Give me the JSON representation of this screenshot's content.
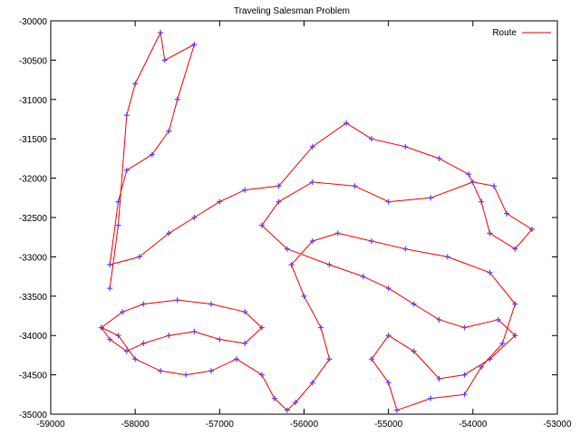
{
  "chart_data": {
    "type": "line",
    "title": "Traveling Salesman Problem",
    "xlabel": "",
    "ylabel": "",
    "xlim": [
      -59000,
      -53000
    ],
    "ylim": [
      -35000,
      -30000
    ],
    "x_ticks": [
      -59000,
      -58000,
      -57000,
      -56000,
      -55000,
      -54000,
      -53000
    ],
    "y_ticks": [
      -30000,
      -30500,
      -31000,
      -31500,
      -32000,
      -32500,
      -33000,
      -33500,
      -34000,
      -34500,
      -35000
    ],
    "grid": false,
    "legend_position": "top-right",
    "series": [
      {
        "name": "Route",
        "line_color": "#ff0000",
        "marker": "+",
        "marker_color": "#5a3cff",
        "points": [
          [
            -58300,
            -33400
          ],
          [
            -58200,
            -32600
          ],
          [
            -58100,
            -31200
          ],
          [
            -58000,
            -30800
          ],
          [
            -57700,
            -30150
          ],
          [
            -57650,
            -30500
          ],
          [
            -57300,
            -30300
          ],
          [
            -57500,
            -31000
          ],
          [
            -57600,
            -31400
          ],
          [
            -57800,
            -31700
          ],
          [
            -58100,
            -31900
          ],
          [
            -58200,
            -32300
          ],
          [
            -58300,
            -33100
          ],
          [
            -57950,
            -33000
          ],
          [
            -57600,
            -32700
          ],
          [
            -57300,
            -32500
          ],
          [
            -57000,
            -32300
          ],
          [
            -56700,
            -32150
          ],
          [
            -56300,
            -32100
          ],
          [
            -55900,
            -31600
          ],
          [
            -55500,
            -31300
          ],
          [
            -55200,
            -31500
          ],
          [
            -54800,
            -31600
          ],
          [
            -54400,
            -31750
          ],
          [
            -54050,
            -31950
          ],
          [
            -53900,
            -32300
          ],
          [
            -53800,
            -32700
          ],
          [
            -53500,
            -32900
          ],
          [
            -53300,
            -32650
          ],
          [
            -53600,
            -32450
          ],
          [
            -53750,
            -32100
          ],
          [
            -54000,
            -32050
          ],
          [
            -54500,
            -32250
          ],
          [
            -55000,
            -32300
          ],
          [
            -55400,
            -32100
          ],
          [
            -55900,
            -32050
          ],
          [
            -56300,
            -32300
          ],
          [
            -56500,
            -32600
          ],
          [
            -56200,
            -32900
          ],
          [
            -55700,
            -33100
          ],
          [
            -55300,
            -33250
          ],
          [
            -55000,
            -33400
          ],
          [
            -54700,
            -33600
          ],
          [
            -54400,
            -33800
          ],
          [
            -54100,
            -33900
          ],
          [
            -53700,
            -33800
          ],
          [
            -53500,
            -34000
          ],
          [
            -53800,
            -34300
          ],
          [
            -54100,
            -34500
          ],
          [
            -54400,
            -34550
          ],
          [
            -54700,
            -34200
          ],
          [
            -55000,
            -34000
          ],
          [
            -55200,
            -34300
          ],
          [
            -55000,
            -34600
          ],
          [
            -54900,
            -34950
          ],
          [
            -54500,
            -34800
          ],
          [
            -54100,
            -34750
          ],
          [
            -53900,
            -34400
          ],
          [
            -53650,
            -34100
          ],
          [
            -53500,
            -33600
          ],
          [
            -53800,
            -33200
          ],
          [
            -54300,
            -33000
          ],
          [
            -54800,
            -32900
          ],
          [
            -55200,
            -32800
          ],
          [
            -55600,
            -32700
          ],
          [
            -55900,
            -32800
          ],
          [
            -56150,
            -33100
          ],
          [
            -56000,
            -33500
          ],
          [
            -55800,
            -33900
          ],
          [
            -55700,
            -34300
          ],
          [
            -55900,
            -34600
          ],
          [
            -56100,
            -34850
          ],
          [
            -56200,
            -34950
          ],
          [
            -56350,
            -34800
          ],
          [
            -56500,
            -34500
          ],
          [
            -56800,
            -34300
          ],
          [
            -57100,
            -34450
          ],
          [
            -57400,
            -34500
          ],
          [
            -57700,
            -34450
          ],
          [
            -58000,
            -34300
          ],
          [
            -58200,
            -34000
          ],
          [
            -58400,
            -33900
          ],
          [
            -58150,
            -33700
          ],
          [
            -57900,
            -33600
          ],
          [
            -57500,
            -33550
          ],
          [
            -57100,
            -33600
          ],
          [
            -56700,
            -33700
          ],
          [
            -56500,
            -33900
          ],
          [
            -56700,
            -34100
          ],
          [
            -57000,
            -34050
          ],
          [
            -57300,
            -33950
          ],
          [
            -57600,
            -34000
          ],
          [
            -57900,
            -34100
          ],
          [
            -58100,
            -34200
          ],
          [
            -58300,
            -34050
          ],
          [
            -58400,
            -33900
          ]
        ]
      }
    ]
  },
  "legend": {
    "items": [
      {
        "label": "Route",
        "color": "#ff0000"
      }
    ]
  }
}
